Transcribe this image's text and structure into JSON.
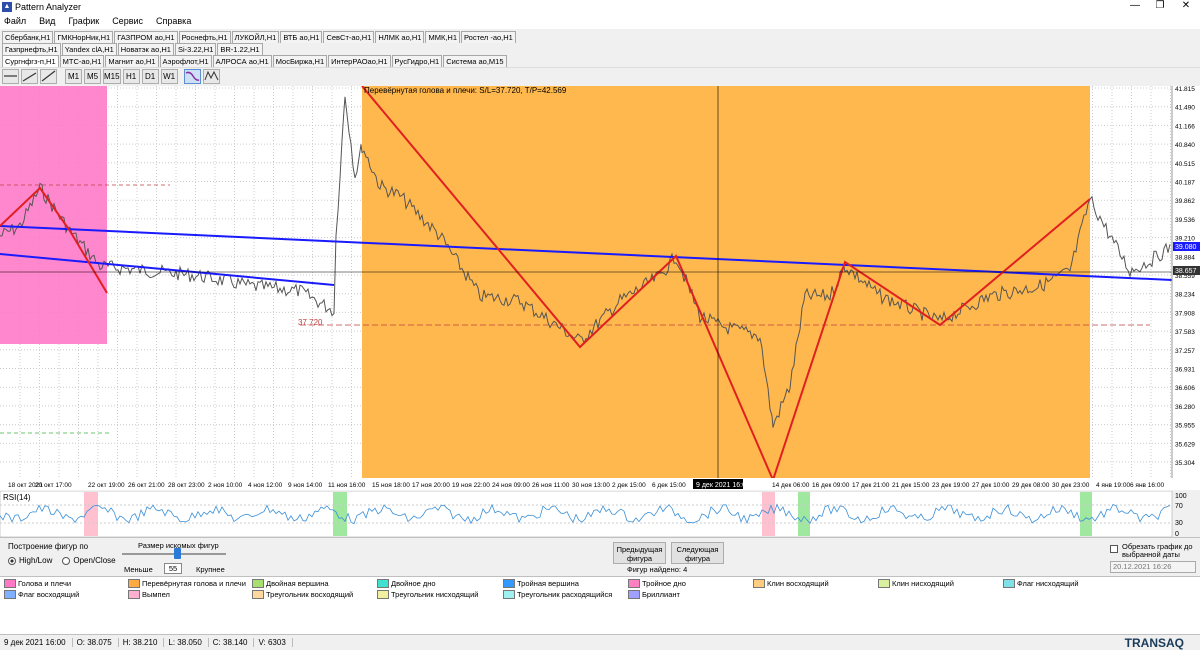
{
  "window": {
    "title": "Pattern Analyzer",
    "min": "—",
    "max": "❐",
    "close": "✕",
    "icon": "chart-icon"
  },
  "menu": [
    "Файл",
    "Вид",
    "График",
    "Сервис",
    "Справка"
  ],
  "tabs_row1": [
    "Сбербанк,H1",
    "ГМКНорНик,H1",
    "ГАЗПРОМ ао,H1",
    "Роснефть,H1",
    "ЛУКОЙЛ,H1",
    "ВТБ ао,H1",
    "СевСт-ао,H1",
    "НЛМК ао,H1",
    "ММК,H1",
    "Ростел -ао,H1"
  ],
  "tabs_row2": [
    "Газпрнефть,H1",
    "Yandex clA,H1",
    "Новатэк ао,H1",
    "Si-3.22,H1",
    "BR-1.22,H1"
  ],
  "tabs_row3": [
    "Сургнфгз-п,H1",
    "МТС-ао,H1",
    "Магнит ао,H1",
    "Аэрофлот,H1",
    "АЛРОСА ао,H1",
    "МосБиржа,H1",
    "ИнтерРАОао,H1",
    "РусГидро,H1",
    "Система ао,M15"
  ],
  "toolbar": {
    "tools": [
      "line-tool-icon",
      "hline-tool-icon",
      "trend-tool-icon"
    ],
    "timeframes": [
      "M1",
      "M5",
      "M15",
      "H1",
      "D1",
      "W1"
    ],
    "selected_tf": "H1",
    "pattern_icons": [
      "wave-icon",
      "zigzag-icon"
    ]
  },
  "chart": {
    "pattern_label": "Перевёрнутая голова и плечи: S/L=37.720, T/P=42.569",
    "sl_label": "37.720",
    "price_ticks": [
      "41.815",
      "41.490",
      "41.166",
      "40.840",
      "40.515",
      "40.187",
      "39.862",
      "39.536",
      "39.210",
      "38.884",
      "38.559",
      "38.234",
      "37.908",
      "37.583",
      "37.257",
      "36.931",
      "36.606",
      "36.280",
      "35.955",
      "35.629",
      "35.304"
    ],
    "price_tag_current": "39.080",
    "price_tag_cursor": "38.657",
    "time_ticks": [
      "18 окт 2021",
      "20 окт 17:00",
      "22 окт 19:00",
      "26 окт 21:00",
      "28 окт 23:00",
      "2 ноя 10:00",
      "4 ноя 12:00",
      "9 ноя 14:00",
      "11 ноя 16:00",
      "15 ноя 18:00",
      "17 ноя 20:00",
      "19 ноя 22:00",
      "24 ноя 09:00",
      "26 ноя 11:00",
      "30 ноя 13:00",
      "2 дек 15:00",
      "6 дек 15:00",
      "9 дек 2021 16:00",
      "14 дек 06:00",
      "16 дек 09:00",
      "17 дек 21:00",
      "21 дек 15:00",
      "23 дек 19:00",
      "27 дек 10:00",
      "29 дек 08:00",
      "30 дек 23:00",
      "4 янв 19:00",
      "6 янв 16:00"
    ],
    "time_cursor": "9 дек 2021 16:00"
  },
  "rsi": {
    "label": "RSI(14)",
    "ticks": [
      "100",
      "70",
      "30",
      "0"
    ]
  },
  "controls": {
    "build_label": "Построение фигур по",
    "opt1": "High/Low",
    "opt2": "Open/Close",
    "size_label": "Размер искомых фигур",
    "less": "Меньше",
    "more": "Крупнее",
    "size_value": "55",
    "prev_btn": "Предыдущая фигура",
    "next_btn": "Следующая фигура",
    "found": "Фигур найдено: 4",
    "cut_label": "Обрезать график до выбранной даты",
    "cut_date": "20.12.2021 16:26"
  },
  "legend": [
    {
      "label": "Голова и плечи",
      "color": "#ff79c6"
    },
    {
      "label": "Перевёрнутая голова и плечи",
      "color": "#ffab40"
    },
    {
      "label": "Двойная вершина",
      "color": "#a8e070"
    },
    {
      "label": "Двойное дно",
      "color": "#40e0d0"
    },
    {
      "label": "Тройная вершина",
      "color": "#3399ff"
    },
    {
      "label": "Тройное дно",
      "color": "#ff80c0"
    },
    {
      "label": "Клин восходящий",
      "color": "#ffcc80"
    },
    {
      "label": "Клин нисходящий",
      "color": "#d8f0a0"
    },
    {
      "label": "Флаг нисходящий",
      "color": "#80e0e8"
    },
    {
      "label": "Флаг восходящий",
      "color": "#80b0ff"
    },
    {
      "label": "Вымпел",
      "color": "#ffb0d0"
    },
    {
      "label": "Треугольник восходящий",
      "color": "#ffd8a0"
    },
    {
      "label": "Треугольник нисходящий",
      "color": "#f0f0a0"
    },
    {
      "label": "Треугольник расходящийся",
      "color": "#a0f0f0"
    },
    {
      "label": "Бриллиант",
      "color": "#a0a0ff"
    }
  ],
  "status": {
    "date": "9 дек 2021 16:00",
    "open": "O: 38.075",
    "high": "H: 38.210",
    "low": "L: 38.050",
    "close": "C: 38.140",
    "vol": "V: 6303"
  },
  "brand": "TRANSAQ"
}
